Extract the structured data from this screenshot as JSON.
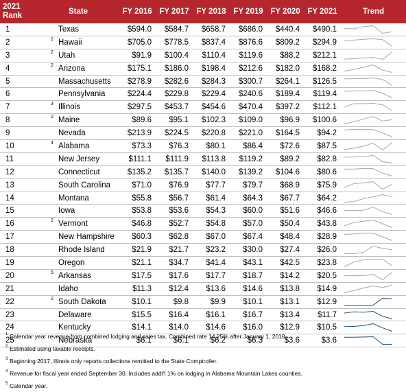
{
  "table": {
    "headers": {
      "rank_line1": "2021",
      "rank_line2": "Rank",
      "state": "State",
      "years": [
        "FY 2016",
        "FY 2017",
        "FY 2018",
        "FY 2019",
        "FY 2020",
        "FY 2021"
      ],
      "trend": "Trend"
    },
    "spark_colors": [
      "#a6a6a6",
      "#1f4e79"
    ],
    "rows": [
      {
        "rank": "1",
        "state": "Texas",
        "note": "",
        "values": [
          "$594.0",
          "$584.7",
          "$658.7",
          "$686.0",
          "$440.4",
          "$490.1"
        ],
        "nums": [
          594.0,
          584.7,
          658.7,
          686.0,
          440.4,
          490.1
        ]
      },
      {
        "rank": "2",
        "state": "Hawaii",
        "note": "1",
        "values": [
          "$705.0",
          "$778.5",
          "$837.4",
          "$876.6",
          "$809.2",
          "$294.9"
        ],
        "nums": [
          705.0,
          778.5,
          837.4,
          876.6,
          809.2,
          294.9
        ]
      },
      {
        "rank": "3",
        "state": "Utah",
        "note": "2",
        "values": [
          "$91.9",
          "$100.4",
          "$110.4",
          "$119.6",
          "$88.2",
          "$212.1"
        ],
        "nums": [
          91.9,
          100.4,
          110.4,
          119.6,
          88.2,
          212.1
        ]
      },
      {
        "rank": "4",
        "state": "Arizona",
        "note": "2",
        "values": [
          "$175.1",
          "$186.0",
          "$198.4",
          "$212.6",
          "$182.0",
          "$168.2"
        ],
        "nums": [
          175.1,
          186.0,
          198.4,
          212.6,
          182.0,
          168.2
        ]
      },
      {
        "rank": "5",
        "state": "Massachusetts",
        "note": "",
        "values": [
          "$278.9",
          "$282.6",
          "$284.3",
          "$300.7",
          "$264.1",
          "$126.5"
        ],
        "nums": [
          278.9,
          282.6,
          284.3,
          300.7,
          264.1,
          126.5
        ]
      },
      {
        "rank": "6",
        "state": "Pennsylvania",
        "note": "",
        "values": [
          "$224.4",
          "$229.8",
          "$229.4",
          "$240.6",
          "$189.4",
          "$119.4"
        ],
        "nums": [
          224.4,
          229.8,
          229.4,
          240.6,
          189.4,
          119.4
        ]
      },
      {
        "rank": "7",
        "state": "Illinois",
        "note": "3",
        "values": [
          "$297.5",
          "$453.7",
          "$454.6",
          "$470.4",
          "$397.2",
          "$112.1"
        ],
        "nums": [
          297.5,
          453.7,
          454.6,
          470.4,
          397.2,
          112.1
        ]
      },
      {
        "rank": "8",
        "state": "Maine",
        "note": "2",
        "values": [
          "$89.6",
          "$95.1",
          "$102.3",
          "$109.0",
          "$96.9",
          "$100.6"
        ],
        "nums": [
          89.6,
          95.1,
          102.3,
          109.0,
          96.9,
          100.6
        ]
      },
      {
        "rank": "9",
        "state": "Nevada",
        "note": "",
        "values": [
          "$213.9",
          "$224.5",
          "$220.8",
          "$221.0",
          "$164.5",
          "$94.2"
        ],
        "nums": [
          213.9,
          224.5,
          220.8,
          221.0,
          164.5,
          94.2
        ]
      },
      {
        "rank": "10",
        "state": "Alabama",
        "note": "4",
        "values": [
          "$73.3",
          "$76.3",
          "$80.1",
          "$86.4",
          "$72.6",
          "$87.5"
        ],
        "nums": [
          73.3,
          76.3,
          80.1,
          86.4,
          72.6,
          87.5
        ]
      },
      {
        "rank": "11",
        "state": "New Jersey",
        "note": "",
        "values": [
          "$111.1",
          "$111.9",
          "$113.8",
          "$119.2",
          "$89.2",
          "$82.8"
        ],
        "nums": [
          111.1,
          111.9,
          113.8,
          119.2,
          89.2,
          82.8
        ]
      },
      {
        "rank": "12",
        "state": "Connecticut",
        "note": "",
        "values": [
          "$135.2",
          "$135.7",
          "$140.0",
          "$139.2",
          "$104.6",
          "$80.6"
        ],
        "nums": [
          135.2,
          135.7,
          140.0,
          139.2,
          104.6,
          80.6
        ]
      },
      {
        "rank": "13",
        "state": "South Carolina",
        "note": "",
        "values": [
          "$71.0",
          "$76.9",
          "$77.7",
          "$79.7",
          "$68.9",
          "$75.9"
        ],
        "nums": [
          71.0,
          76.9,
          77.7,
          79.7,
          68.9,
          75.9
        ]
      },
      {
        "rank": "14",
        "state": "Montana",
        "note": "",
        "values": [
          "$55.8",
          "$56.7",
          "$61.4",
          "$64.3",
          "$67.7",
          "$64.2"
        ],
        "nums": [
          55.8,
          56.7,
          61.4,
          64.3,
          67.7,
          64.2
        ]
      },
      {
        "rank": "15",
        "state": "Iowa",
        "note": "",
        "values": [
          "$53.8",
          "$53.6",
          "$54.3",
          "$60.0",
          "$51.6",
          "$46.6"
        ],
        "nums": [
          53.8,
          53.6,
          54.3,
          60.0,
          51.6,
          46.6
        ]
      },
      {
        "rank": "16",
        "state": "Vermont",
        "note": "2",
        "values": [
          "$46.8",
          "$52.7",
          "$54.8",
          "$57.0",
          "$50.4",
          "$43.8"
        ],
        "nums": [
          46.8,
          52.7,
          54.8,
          57.0,
          50.4,
          43.8
        ]
      },
      {
        "rank": "17",
        "state": "New Hampshire",
        "note": "",
        "values": [
          "$60.3",
          "$62.8",
          "$67.0",
          "$67.4",
          "$48.4",
          "$28.9"
        ],
        "nums": [
          60.3,
          62.8,
          67.0,
          67.4,
          48.4,
          28.9
        ]
      },
      {
        "rank": "18",
        "state": "Rhode Island",
        "note": "",
        "values": [
          "$21.9",
          "$21.7",
          "$23.2",
          "$30.0",
          "$27.4",
          "$26.0"
        ],
        "nums": [
          21.9,
          21.7,
          23.2,
          30.0,
          27.4,
          26.0
        ]
      },
      {
        "rank": "19",
        "state": "Oregon",
        "note": "",
        "values": [
          "$21.1",
          "$34.7",
          "$41.4",
          "$43.1",
          "$42.5",
          "$23.8"
        ],
        "nums": [
          21.1,
          34.7,
          41.4,
          43.1,
          42.5,
          23.8
        ]
      },
      {
        "rank": "20",
        "state": "Arkansas",
        "note": "5",
        "values": [
          "$17.5",
          "$17.6",
          "$17.7",
          "$18.7",
          "$14.2",
          "$20.5"
        ],
        "nums": [
          17.5,
          17.6,
          17.7,
          18.7,
          14.2,
          20.5
        ]
      },
      {
        "rank": "21",
        "state": "Idaho",
        "note": "",
        "values": [
          "$11.3",
          "$12.4",
          "$13.6",
          "$14.6",
          "$13.8",
          "$14.9"
        ],
        "nums": [
          11.3,
          12.4,
          13.6,
          14.6,
          13.8,
          14.9
        ]
      },
      {
        "rank": "22",
        "state": "South Dakota",
        "note": "2",
        "values": [
          "$10.1",
          "$9.8",
          "$9.9",
          "$10.1",
          "$13.1",
          "$12.9"
        ],
        "nums": [
          10.1,
          9.8,
          9.9,
          10.1,
          13.1,
          12.9
        ]
      },
      {
        "rank": "23",
        "state": "Delaware",
        "note": "",
        "values": [
          "$15.5",
          "$16.4",
          "$16.1",
          "$16.7",
          "$13.4",
          "$11.7"
        ],
        "nums": [
          15.5,
          16.4,
          16.1,
          16.7,
          13.4,
          11.7
        ]
      },
      {
        "rank": "24",
        "state": "Kentucky",
        "note": "",
        "values": [
          "$14.1",
          "$14.0",
          "$14.6",
          "$16.0",
          "$12.9",
          "$10.5"
        ],
        "nums": [
          14.1,
          14.0,
          14.6,
          16.0,
          12.9,
          10.5
        ]
      },
      {
        "rank": "25",
        "state": "Nebraska",
        "note": "",
        "values": [
          "$6.1",
          "$6.1",
          "$6.2",
          "$6.3",
          "$3.6",
          "$3.6"
        ],
        "nums": [
          6.1,
          6.1,
          6.2,
          6.3,
          3.6,
          3.6
        ]
      }
    ]
  },
  "footnotes": [
    {
      "mark": "1",
      "text": "Calendar year revenue from combined lodging and sales tax. Combined rate 14.25% after January 1, 2018."
    },
    {
      "mark": "2",
      "text": "Estimated using taxable receipts."
    },
    {
      "mark": "3",
      "text": "Beginning 2017, Illinois only reports collections remitted to the State Comptroller."
    },
    {
      "mark": "4",
      "text": "Revenue for fiscal year ended September 30. Includes addt'l 1% on lodging in Alabama Mountain Lakes counties."
    },
    {
      "mark": "5",
      "text": "Calendar year."
    }
  ]
}
